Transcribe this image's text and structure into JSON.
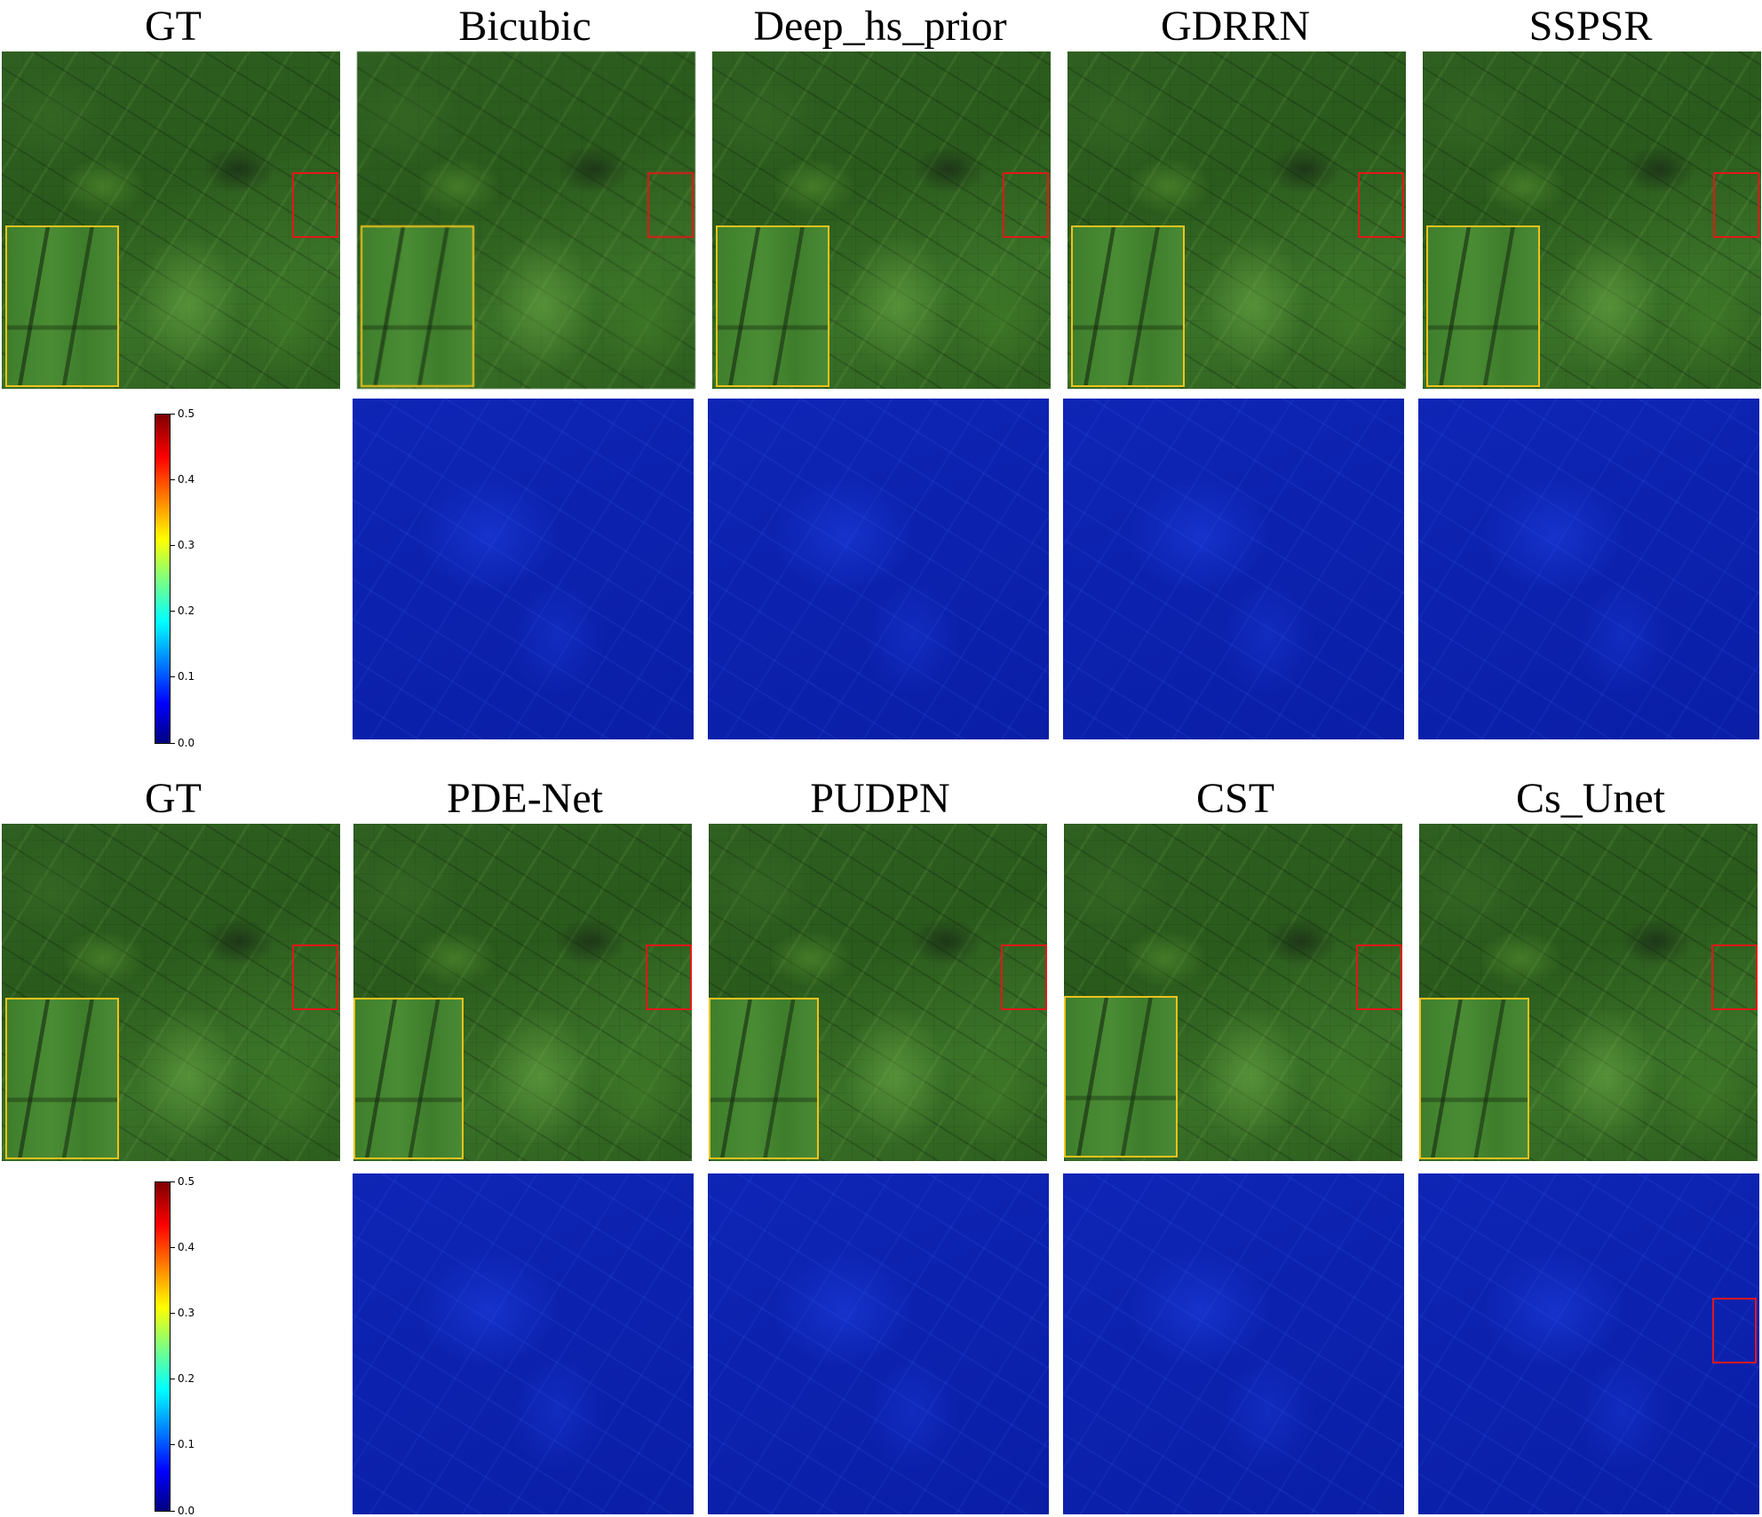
{
  "rows": [
    {
      "methods": [
        "GT",
        "Bicubic",
        "Deep_hs_prior",
        "GDRRN",
        "SSPSR"
      ]
    },
    {
      "methods": [
        "GT",
        "PDE-Net",
        "PUDPN",
        "CST",
        "Cs_Unet"
      ]
    }
  ],
  "colorbar": {
    "ticks": [
      "0.5",
      "0.4",
      "0.3",
      "0.2",
      "0.1",
      "0.0"
    ],
    "range": [
      0.0,
      0.5
    ],
    "colormap": "jet"
  },
  "colors": {
    "inset_border": "#f2c21b",
    "zoom_box": "#e01818",
    "error_base": "#0b1fa8"
  }
}
